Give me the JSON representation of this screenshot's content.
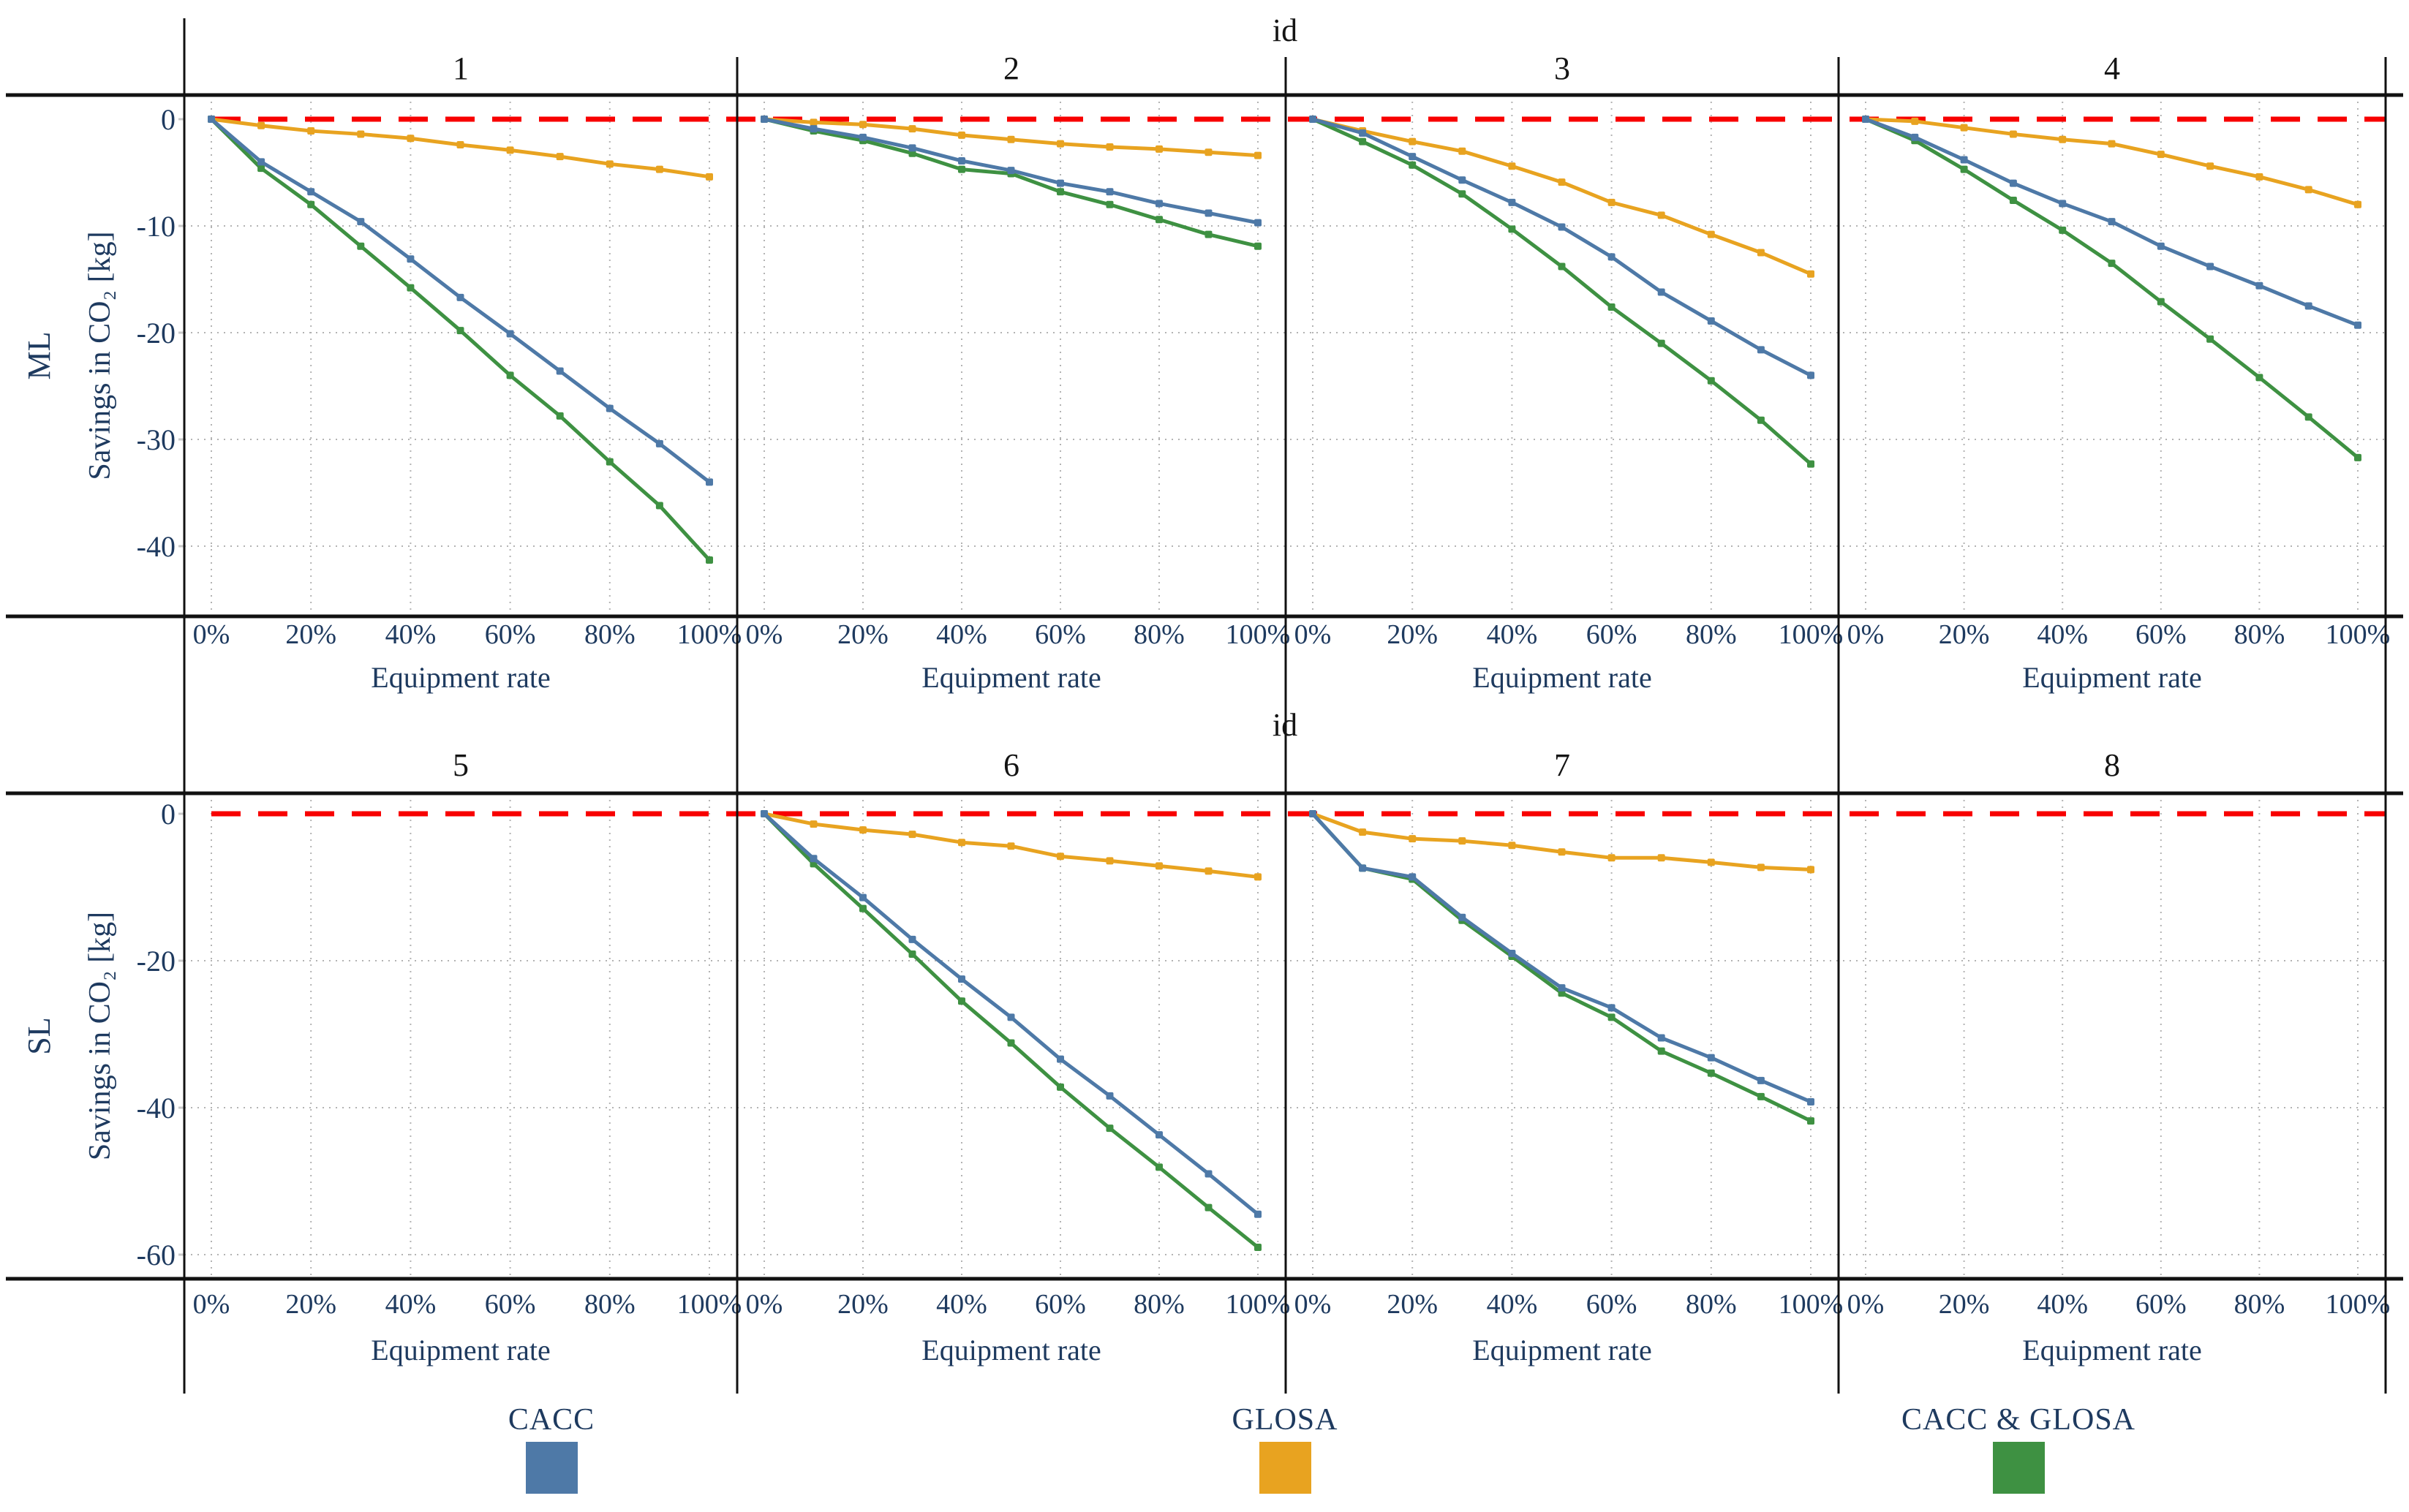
{
  "page": {
    "background": "#ffffff"
  },
  "chart_data": {
    "type": "line",
    "strip_title": "id",
    "xlabel": "Equipment rate",
    "ylabel": "Savings in CO₂ [kg]",
    "x_percent": [
      0,
      10,
      20,
      30,
      40,
      50,
      60,
      70,
      80,
      90,
      100
    ],
    "x_tick_labels": [
      "0%",
      "20%",
      "40%",
      "60%",
      "80%",
      "100%"
    ],
    "x_tick_percent": [
      0,
      20,
      40,
      60,
      80,
      100
    ],
    "grid": "dotted",
    "zero_line": {
      "color": "#f80000",
      "style": "dashed",
      "y": 0
    },
    "legend_position": "bottom",
    "legend": [
      {
        "name": "CACC",
        "color": "#4e79a7"
      },
      {
        "name": "GLOSA",
        "color": "#e8a320"
      },
      {
        "name": "CACC & GLOSA",
        "color": "#3e9142"
      }
    ],
    "rows": [
      {
        "row_label": "ML",
        "yticks": [
          0,
          -10,
          -20,
          -30,
          -40
        ],
        "ylim": [
          -46.6,
          2.3
        ],
        "facets": [
          {
            "id": "1",
            "series": [
              {
                "name": "CACC",
                "values": [
                  0,
                  -4.0,
                  -6.8,
                  -9.6,
                  -13.1,
                  -16.7,
                  -20.1,
                  -23.6,
                  -27.1,
                  -30.4,
                  -34.0
                ]
              },
              {
                "name": "GLOSA",
                "values": [
                  0,
                  -0.6,
                  -1.1,
                  -1.4,
                  -1.8,
                  -2.4,
                  -2.9,
                  -3.5,
                  -4.2,
                  -4.7,
                  -5.4
                ]
              },
              {
                "name": "CACC & GLOSA",
                "values": [
                  0,
                  -4.6,
                  -8.0,
                  -11.9,
                  -15.8,
                  -19.8,
                  -24.0,
                  -27.8,
                  -32.1,
                  -36.2,
                  -41.3
                ]
              }
            ]
          },
          {
            "id": "2",
            "series": [
              {
                "name": "CACC",
                "values": [
                  0,
                  -0.9,
                  -1.7,
                  -2.7,
                  -3.9,
                  -4.8,
                  -6.0,
                  -6.8,
                  -7.9,
                  -8.8,
                  -9.7
                ]
              },
              {
                "name": "GLOSA",
                "values": [
                  0,
                  -0.3,
                  -0.5,
                  -0.9,
                  -1.5,
                  -1.9,
                  -2.3,
                  -2.6,
                  -2.8,
                  -3.1,
                  -3.4
                ]
              },
              {
                "name": "CACC & GLOSA",
                "values": [
                  0,
                  -1.1,
                  -2.0,
                  -3.2,
                  -4.7,
                  -5.1,
                  -6.8,
                  -8.0,
                  -9.4,
                  -10.8,
                  -11.9
                ]
              }
            ]
          },
          {
            "id": "3",
            "series": [
              {
                "name": "CACC",
                "values": [
                  0,
                  -1.3,
                  -3.5,
                  -5.7,
                  -7.8,
                  -10.1,
                  -12.9,
                  -16.2,
                  -18.9,
                  -21.6,
                  -24.0
                ]
              },
              {
                "name": "GLOSA",
                "values": [
                  0,
                  -1.1,
                  -2.1,
                  -3.0,
                  -4.4,
                  -5.9,
                  -7.8,
                  -9.0,
                  -10.8,
                  -12.5,
                  -14.5
                ]
              },
              {
                "name": "CACC & GLOSA",
                "values": [
                  0,
                  -2.1,
                  -4.3,
                  -7.0,
                  -10.3,
                  -13.8,
                  -17.6,
                  -21.0,
                  -24.5,
                  -28.2,
                  -32.3
                ]
              }
            ]
          },
          {
            "id": "4",
            "series": [
              {
                "name": "CACC",
                "values": [
                  0,
                  -1.7,
                  -3.8,
                  -6.0,
                  -7.9,
                  -9.6,
                  -11.9,
                  -13.8,
                  -15.6,
                  -17.5,
                  -19.3
                ]
              },
              {
                "name": "GLOSA",
                "values": [
                  0,
                  -0.2,
                  -0.8,
                  -1.4,
                  -1.9,
                  -2.3,
                  -3.3,
                  -4.4,
                  -5.4,
                  -6.6,
                  -8.0
                ]
              },
              {
                "name": "CACC & GLOSA",
                "values": [
                  0,
                  -2.0,
                  -4.7,
                  -7.6,
                  -10.4,
                  -13.5,
                  -17.1,
                  -20.6,
                  -24.2,
                  -27.9,
                  -31.7
                ]
              }
            ]
          }
        ]
      },
      {
        "row_label": "SL",
        "yticks": [
          0,
          -20,
          -40,
          -60
        ],
        "ylim": [
          -63.3,
          2.8
        ],
        "facets": [
          {
            "id": "5",
            "series": []
          },
          {
            "id": "6",
            "series": [
              {
                "name": "CACC",
                "values": [
                  0,
                  -6.1,
                  -11.4,
                  -17.1,
                  -22.5,
                  -27.7,
                  -33.4,
                  -38.4,
                  -43.7,
                  -49.0,
                  -54.5
                ]
              },
              {
                "name": "GLOSA",
                "values": [
                  0,
                  -1.4,
                  -2.2,
                  -2.8,
                  -3.9,
                  -4.4,
                  -5.8,
                  -6.4,
                  -7.1,
                  -7.8,
                  -8.6
                ]
              },
              {
                "name": "CACC & GLOSA",
                "values": [
                  0,
                  -6.8,
                  -12.9,
                  -19.1,
                  -25.5,
                  -31.2,
                  -37.2,
                  -42.8,
                  -48.1,
                  -53.6,
                  -59.0
                ]
              }
            ]
          },
          {
            "id": "7",
            "series": [
              {
                "name": "CACC",
                "values": [
                  0,
                  -7.4,
                  -8.6,
                  -14.1,
                  -19.0,
                  -23.7,
                  -26.4,
                  -30.5,
                  -33.2,
                  -36.3,
                  -39.2
                ]
              },
              {
                "name": "GLOSA",
                "values": [
                  0,
                  -2.5,
                  -3.4,
                  -3.7,
                  -4.3,
                  -5.2,
                  -6.0,
                  -6.0,
                  -6.6,
                  -7.3,
                  -7.6
                ]
              },
              {
                "name": "CACC & GLOSA",
                "values": [
                  0,
                  -7.4,
                  -8.9,
                  -14.5,
                  -19.4,
                  -24.4,
                  -27.7,
                  -32.3,
                  -35.3,
                  -38.5,
                  -41.8
                ]
              }
            ]
          },
          {
            "id": "8",
            "series": []
          }
        ]
      }
    ]
  }
}
